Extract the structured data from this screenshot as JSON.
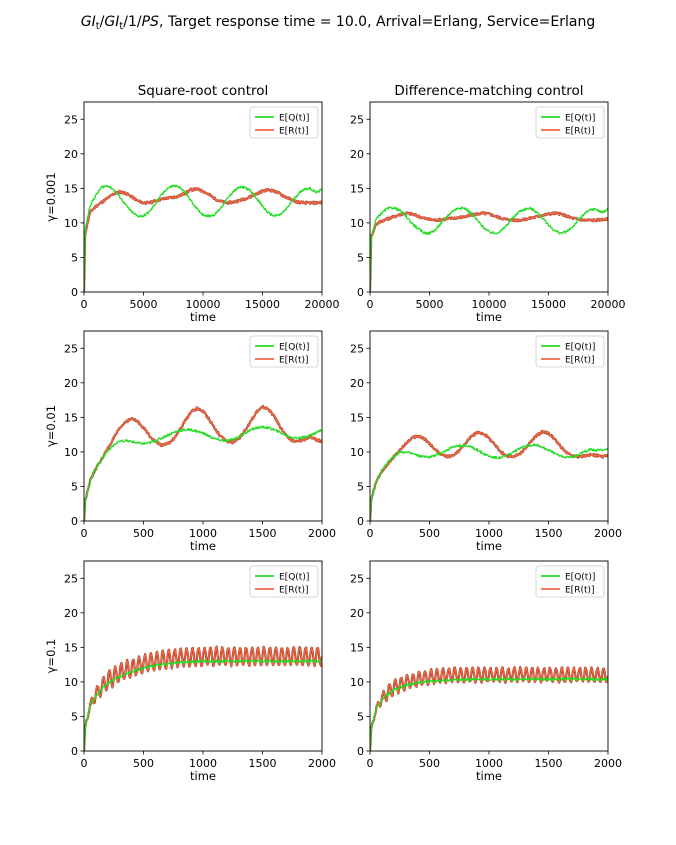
{
  "figure": {
    "title_prefix": "GI",
    "title_sub1": "t",
    "title_slash1": "/",
    "title_gi2": "GI",
    "title_sub2": "t",
    "title_slash2": "/1/",
    "title_ps": "PS",
    "title_rest": ", Target response time = 10.0, Arrival=Erlang, Service=Erlang",
    "column_titles": [
      "Square-root control",
      "Difference-matching control"
    ],
    "row_labels": [
      "γ=0.001",
      "γ=0.01",
      "γ=0.1"
    ],
    "colors": {
      "EQ": "#22dd22",
      "ER": "#ee6644",
      "ER_dark": "#a03a22"
    }
  },
  "chart_data": [
    {
      "type": "line",
      "panel": "row1-col1",
      "xlabel": "time",
      "ylabel": "γ=0.001",
      "xlim": [
        0,
        20000
      ],
      "ylim": [
        0,
        27.5
      ],
      "xticks": [
        0,
        5000,
        10000,
        15000,
        20000
      ],
      "yticks": [
        0,
        5,
        10,
        15,
        20,
        25
      ],
      "legend": "top-right",
      "series": [
        {
          "name": "E[Q(t)]",
          "color": "#22dd22",
          "x": [
            0,
            100,
            500,
            1000,
            1500,
            2000,
            2500,
            3000,
            3500,
            4000,
            4500,
            5000,
            5500,
            6000,
            6500,
            7000,
            7500,
            8000,
            8500,
            9000,
            9500,
            10000,
            10500,
            11000,
            11500,
            12000,
            12500,
            13000,
            13500,
            14000,
            14500,
            15000,
            15500,
            16000,
            16500,
            17000,
            17500,
            18000,
            18500,
            19000,
            19500,
            20000
          ],
          "y": [
            0,
            9,
            12.5,
            14,
            15.2,
            15.4,
            14.8,
            13.8,
            12.6,
            11.6,
            11,
            11,
            11.6,
            12.8,
            14,
            15,
            15.4,
            15.2,
            14.4,
            13.2,
            12,
            11.2,
            11,
            11.2,
            12.2,
            13.4,
            14.5,
            15.1,
            15.2,
            14.6,
            13.6,
            12.4,
            11.4,
            11,
            11.2,
            12,
            13.2,
            14.2,
            14.9,
            15,
            14.4,
            14.8
          ]
        },
        {
          "name": "E[R(t)]",
          "color": "#ee6644",
          "x": [
            0,
            100,
            500,
            1000,
            1500,
            2000,
            2500,
            3000,
            3500,
            4000,
            4500,
            5000,
            5500,
            6000,
            6500,
            7000,
            7500,
            8000,
            8500,
            9000,
            9500,
            10000,
            10500,
            11000,
            11500,
            12000,
            12500,
            13000,
            13500,
            14000,
            14500,
            15000,
            15500,
            16000,
            16500,
            17000,
            17500,
            18000,
            18500,
            19000,
            19500,
            20000
          ],
          "y": [
            0,
            8.5,
            11.5,
            12.4,
            13,
            13.6,
            14.2,
            14.5,
            14.3,
            13.8,
            13.2,
            12.9,
            12.9,
            13.2,
            13.4,
            13.6,
            13.7,
            13.9,
            14.3,
            14.8,
            14.9,
            14.6,
            14.1,
            13.5,
            13.1,
            12.9,
            13,
            13.2,
            13.5,
            13.8,
            14.2,
            14.6,
            14.8,
            14.6,
            14.2,
            13.7,
            13.3,
            13,
            12.9,
            12.9,
            12.9,
            13
          ]
        }
      ]
    },
    {
      "type": "line",
      "panel": "row1-col2",
      "xlabel": "time",
      "ylabel": "",
      "xlim": [
        0,
        20000
      ],
      "ylim": [
        0,
        27.5
      ],
      "xticks": [
        0,
        5000,
        10000,
        15000,
        20000
      ],
      "yticks": [
        0,
        5,
        10,
        15,
        20,
        25
      ],
      "legend": "top-right",
      "series": [
        {
          "name": "E[Q(t)]",
          "color": "#22dd22",
          "x": [
            0,
            100,
            500,
            1000,
            1500,
            2000,
            2500,
            3000,
            3500,
            4000,
            4500,
            5000,
            5500,
            6000,
            6500,
            7000,
            7500,
            8000,
            8500,
            9000,
            9500,
            10000,
            10500,
            11000,
            11500,
            12000,
            12500,
            13000,
            13500,
            14000,
            14500,
            15000,
            15500,
            16000,
            16500,
            17000,
            17500,
            18000,
            18500,
            19000,
            19500,
            20000
          ],
          "y": [
            0,
            8,
            10.5,
            11.5,
            12.1,
            12.2,
            11.8,
            11,
            10,
            9.2,
            8.6,
            8.5,
            9,
            10,
            11,
            11.8,
            12.2,
            12.1,
            11.4,
            10.4,
            9.4,
            8.7,
            8.5,
            8.8,
            9.7,
            10.7,
            11.6,
            12,
            12.1,
            11.6,
            10.7,
            9.7,
            8.9,
            8.5,
            8.7,
            9.4,
            10.4,
            11.3,
            11.9,
            12,
            11.5,
            12
          ]
        },
        {
          "name": "E[R(t)]",
          "color": "#ee6644",
          "x": [
            0,
            100,
            500,
            1000,
            1500,
            2000,
            2500,
            3000,
            3500,
            4000,
            4500,
            5000,
            5500,
            6000,
            6500,
            7000,
            7500,
            8000,
            8500,
            9000,
            9500,
            10000,
            10500,
            11000,
            11500,
            12000,
            12500,
            13000,
            13500,
            14000,
            14500,
            15000,
            15500,
            16000,
            16500,
            17000,
            17500,
            18000,
            18500,
            19000,
            19500,
            20000
          ],
          "y": [
            0,
            8,
            9.8,
            10.3,
            10.6,
            10.9,
            11.2,
            11.4,
            11.3,
            11,
            10.7,
            10.5,
            10.4,
            10.5,
            10.6,
            10.7,
            10.8,
            10.9,
            11.1,
            11.3,
            11.4,
            11.3,
            11,
            10.7,
            10.5,
            10.4,
            10.4,
            10.5,
            10.7,
            10.9,
            11.1,
            11.3,
            11.4,
            11.3,
            11,
            10.7,
            10.5,
            10.4,
            10.4,
            10.4,
            10.5,
            10.5
          ]
        }
      ]
    },
    {
      "type": "line",
      "panel": "row2-col1",
      "xlabel": "time",
      "ylabel": "γ=0.01",
      "xlim": [
        0,
        2000
      ],
      "ylim": [
        0,
        27.5
      ],
      "xticks": [
        0,
        500,
        1000,
        1500,
        2000
      ],
      "yticks": [
        0,
        5,
        10,
        15,
        20,
        25
      ],
      "legend": "top-right",
      "series": [
        {
          "name": "E[Q(t)]",
          "color": "#22dd22",
          "x": [
            0,
            10,
            50,
            100,
            150,
            200,
            250,
            300,
            350,
            400,
            450,
            500,
            550,
            600,
            650,
            700,
            750,
            800,
            850,
            900,
            950,
            1000,
            1050,
            1100,
            1150,
            1200,
            1250,
            1300,
            1350,
            1400,
            1450,
            1500,
            1550,
            1600,
            1650,
            1700,
            1750,
            1800,
            1850,
            1900,
            1950,
            2000
          ],
          "y": [
            0,
            3,
            5.8,
            7.6,
            9,
            10.2,
            11,
            11.5,
            11.6,
            11.5,
            11.3,
            11.2,
            11.3,
            11.6,
            12,
            12.4,
            12.8,
            13.1,
            13.2,
            13.2,
            13,
            12.7,
            12.3,
            11.9,
            11.7,
            11.6,
            11.8,
            12.2,
            12.7,
            13.2,
            13.5,
            13.6,
            13.5,
            13.2,
            12.8,
            12.4,
            12.1,
            12,
            12.1,
            12.4,
            12.8,
            13.2
          ]
        },
        {
          "name": "E[R(t)]",
          "color": "#ee6644",
          "x": [
            0,
            10,
            50,
            100,
            150,
            200,
            250,
            300,
            350,
            400,
            450,
            500,
            550,
            600,
            650,
            700,
            750,
            800,
            850,
            900,
            950,
            1000,
            1050,
            1100,
            1150,
            1200,
            1250,
            1300,
            1350,
            1400,
            1450,
            1500,
            1550,
            1600,
            1650,
            1700,
            1750,
            1800,
            1850,
            1900,
            1950,
            2000
          ],
          "y": [
            0,
            3,
            5.8,
            7.6,
            9,
            10.5,
            12,
            13.4,
            14.4,
            14.8,
            14.4,
            13.5,
            12.4,
            11.5,
            11,
            11.1,
            11.8,
            13,
            14.5,
            15.8,
            16.3,
            15.9,
            14.8,
            13.4,
            12.2,
            11.5,
            11.4,
            11.9,
            13,
            14.4,
            15.8,
            16.5,
            16.2,
            15.1,
            13.6,
            12.3,
            11.6,
            11.5,
            11.8,
            12.2,
            11.8,
            11.5
          ]
        }
      ]
    },
    {
      "type": "line",
      "panel": "row2-col2",
      "xlabel": "time",
      "ylabel": "",
      "xlim": [
        0,
        2000
      ],
      "ylim": [
        0,
        27.5
      ],
      "xticks": [
        0,
        500,
        1000,
        1500,
        2000
      ],
      "yticks": [
        0,
        5,
        10,
        15,
        20,
        25
      ],
      "legend": "top-right",
      "series": [
        {
          "name": "E[Q(t)]",
          "color": "#22dd22",
          "x": [
            0,
            10,
            50,
            100,
            150,
            200,
            250,
            300,
            350,
            400,
            450,
            500,
            550,
            600,
            650,
            700,
            750,
            800,
            850,
            900,
            950,
            1000,
            1050,
            1100,
            1150,
            1200,
            1250,
            1300,
            1350,
            1400,
            1450,
            1500,
            1550,
            1600,
            1650,
            1700,
            1750,
            1800,
            1850,
            1900,
            1950,
            2000
          ],
          "y": [
            0,
            3,
            5.6,
            7.2,
            8.5,
            9.4,
            9.9,
            10,
            9.8,
            9.5,
            9.3,
            9.3,
            9.5,
            9.9,
            10.3,
            10.7,
            10.9,
            10.9,
            10.7,
            10.3,
            9.8,
            9.4,
            9.2,
            9.2,
            9.5,
            9.9,
            10.4,
            10.8,
            11,
            11,
            10.7,
            10.3,
            9.8,
            9.4,
            9.2,
            9.3,
            9.6,
            10,
            10.4,
            10.2,
            10.3,
            10.5
          ]
        },
        {
          "name": "E[R(t)]",
          "color": "#ee6644",
          "x": [
            0,
            10,
            50,
            100,
            150,
            200,
            250,
            300,
            350,
            400,
            450,
            500,
            550,
            600,
            650,
            700,
            750,
            800,
            850,
            900,
            950,
            1000,
            1050,
            1100,
            1150,
            1200,
            1250,
            1300,
            1350,
            1400,
            1450,
            1500,
            1550,
            1600,
            1650,
            1700,
            1750,
            1800,
            1850,
            1900,
            1950,
            2000
          ],
          "y": [
            0,
            3,
            5.6,
            7.2,
            8.3,
            9.3,
            10.2,
            11.2,
            12,
            12.3,
            12,
            11.2,
            10.3,
            9.6,
            9.3,
            9.5,
            10.2,
            11.2,
            12.2,
            12.8,
            12.7,
            12,
            11,
            10,
            9.4,
            9.3,
            9.6,
            10.4,
            11.4,
            12.4,
            12.9,
            12.7,
            11.9,
            10.8,
            9.9,
            9.4,
            9.3,
            9.4,
            9.6,
            9.5,
            9.3,
            9.5
          ]
        }
      ]
    },
    {
      "type": "line",
      "panel": "row3-col1",
      "xlabel": "time",
      "ylabel": "γ=0.1",
      "xlim": [
        0,
        2000
      ],
      "ylim": [
        0,
        27.5
      ],
      "xticks": [
        0,
        500,
        1000,
        1500,
        2000
      ],
      "yticks": [
        0,
        5,
        10,
        15,
        20,
        25
      ],
      "legend": "top-right",
      "series": [
        {
          "name": "E[Q(t)]",
          "color": "#22dd22",
          "x": [
            0,
            10,
            50,
            100,
            150,
            200,
            300,
            400,
            500,
            600,
            700,
            800,
            900,
            1000,
            1200,
            1400,
            1600,
            1800,
            2000
          ],
          "y": [
            0,
            3.5,
            6.5,
            8,
            9,
            9.8,
            10.8,
            11.5,
            12,
            12.4,
            12.6,
            12.8,
            12.9,
            13,
            13,
            13,
            13,
            13,
            13
          ]
        },
        {
          "name": "E[R(t)]",
          "color": "#ee6644",
          "x": [
            0,
            10,
            50,
            100,
            150,
            200,
            300,
            400,
            500,
            600,
            700,
            800,
            900,
            1000,
            1200,
            1400,
            1600,
            1800,
            2000
          ],
          "y": [
            0,
            3.5,
            6.5,
            8.2,
            9.3,
            10.2,
            11.3,
            12,
            12.6,
            13,
            13.3,
            13.5,
            13.6,
            13.7,
            13.7,
            13.7,
            13.7,
            13.7,
            13.7
          ],
          "oscillation_amplitude": 1.3,
          "oscillation_period": 50
        }
      ]
    },
    {
      "type": "line",
      "panel": "row3-col2",
      "xlabel": "time",
      "ylabel": "",
      "xlim": [
        0,
        2000
      ],
      "ylim": [
        0,
        27.5
      ],
      "xticks": [
        0,
        500,
        1000,
        1500,
        2000
      ],
      "yticks": [
        0,
        5,
        10,
        15,
        20,
        25
      ],
      "legend": "top-right",
      "series": [
        {
          "name": "E[Q(t)]",
          "color": "#22dd22",
          "x": [
            0,
            10,
            50,
            100,
            150,
            200,
            300,
            400,
            500,
            600,
            700,
            800,
            900,
            1000,
            1200,
            1400,
            1600,
            1800,
            2000
          ],
          "y": [
            0,
            3.2,
            6,
            7.4,
            8.2,
            8.8,
            9.5,
            9.9,
            10.1,
            10.2,
            10.3,
            10.3,
            10.4,
            10.4,
            10.4,
            10.4,
            10.4,
            10.4,
            10.4
          ]
        },
        {
          "name": "E[R(t)]",
          "color": "#ee6644",
          "x": [
            0,
            10,
            50,
            100,
            150,
            200,
            300,
            400,
            500,
            600,
            700,
            800,
            900,
            1000,
            1200,
            1400,
            1600,
            1800,
            2000
          ],
          "y": [
            0,
            3.2,
            6,
            7.6,
            8.5,
            9.2,
            9.9,
            10.4,
            10.7,
            10.9,
            11,
            11,
            11,
            11,
            11,
            11,
            11,
            11,
            11
          ],
          "oscillation_amplitude": 1.0,
          "oscillation_period": 50
        }
      ]
    }
  ]
}
